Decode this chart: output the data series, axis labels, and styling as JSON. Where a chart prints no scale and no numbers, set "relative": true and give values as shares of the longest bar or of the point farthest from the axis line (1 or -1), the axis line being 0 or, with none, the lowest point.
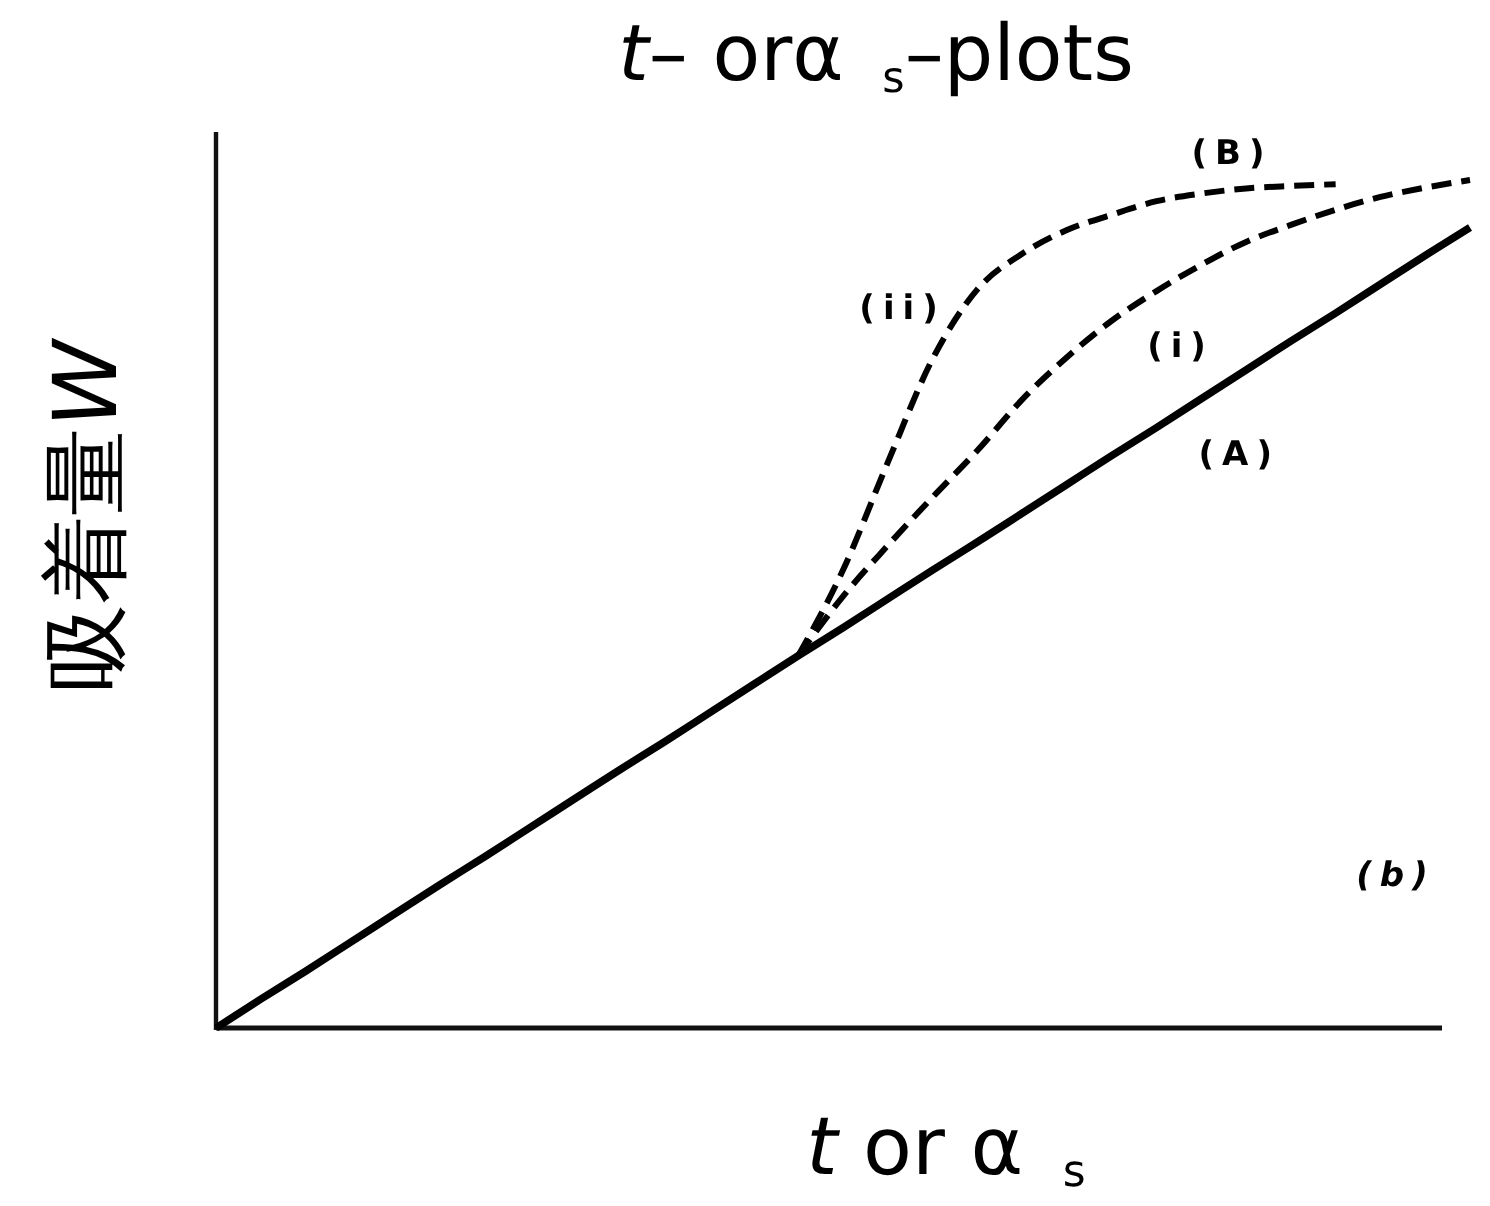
{
  "chart_data": {
    "type": "line",
    "title": "t– orα$_{s}$–plots",
    "xlabel": "t or α$_{s}$",
    "ylabel": "吸着量W",
    "relative": true,
    "categories": [
      null,
      null,
      null,
      null,
      null,
      null,
      null,
      null,
      null,
      null,
      null,
      null,
      null,
      null,
      null,
      null,
      null,
      null,
      null,
      null,
      null,
      null,
      null,
      null,
      null,
      null,
      null,
      null,
      null
    ],
    "series": [
      {
        "name": "(A)",
        "color": "#000000",
        "line_style": "solid",
        "values": [
          0,
          0.034,
          0.067,
          0.101,
          0.135,
          0.169,
          0.202,
          0.236,
          0.27,
          0.304,
          0.337,
          0.371,
          0.405,
          0.439,
          0.472,
          0.506,
          0.54,
          0.573,
          0.607,
          0.641,
          0.675,
          0.708,
          0.742,
          0.776,
          0.81,
          0.843,
          0.877,
          0.911,
          0.944
        ]
      },
      {
        "name": "(i)",
        "color": "#000000",
        "line_style": "dashed",
        "values": [
          null,
          null,
          null,
          null,
          null,
          null,
          null,
          null,
          null,
          null,
          null,
          null,
          null,
          0.439,
          0.509,
          0.569,
          0.626,
          0.681,
          0.741,
          0.791,
          0.834,
          0.869,
          0.9,
          0.927,
          0.947,
          0.965,
          0.98,
          0.991,
          1
        ]
      },
      {
        "name": "(ii)",
        "color": "#000000",
        "line_style": "dashed",
        "values": [
          null,
          null,
          null,
          null,
          null,
          null,
          null,
          null,
          null,
          null,
          null,
          null,
          null,
          0.439,
          0.54,
          0.667,
          0.789,
          0.871,
          0.913,
          0.941,
          0.959,
          0.975,
          0.984,
          0.99,
          0.993,
          0.995,
          null,
          null,
          null
        ]
      }
    ],
    "annotations": [
      "(B)",
      "(b)"
    ]
  }
}
